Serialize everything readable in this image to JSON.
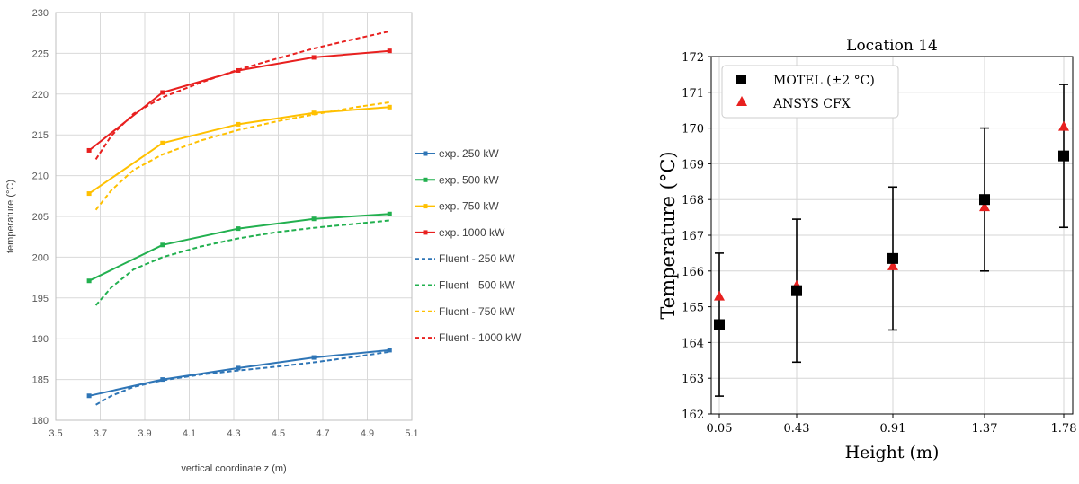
{
  "chart_data": [
    {
      "type": "line",
      "title": "",
      "xlabel": "vertical coordinate z (m)",
      "ylabel": "temperature (°C)",
      "xlim": [
        3.5,
        5.1
      ],
      "ylim": [
        180,
        230
      ],
      "x_ticks": [
        "3.5",
        "3.7",
        "3.9",
        "4.1",
        "4.3",
        "4.5",
        "4.7",
        "4.9",
        "5.1"
      ],
      "y_ticks": [
        "180",
        "185",
        "190",
        "195",
        "200",
        "205",
        "210",
        "215",
        "220",
        "225",
        "230"
      ],
      "grid": true,
      "legend_position": "right",
      "series": [
        {
          "name": "exp. 250 kW",
          "color": "#2e75b6",
          "style": "solid-marker",
          "x": [
            3.65,
            3.98,
            4.32,
            4.66,
            5.0
          ],
          "y": [
            183.0,
            185.0,
            186.4,
            187.7,
            188.6
          ]
        },
        {
          "name": "exp. 500 kW",
          "color": "#22b04f",
          "style": "solid-marker",
          "x": [
            3.65,
            3.98,
            4.32,
            4.66,
            5.0
          ],
          "y": [
            197.1,
            201.5,
            203.5,
            204.7,
            205.3
          ]
        },
        {
          "name": "exp. 750 kW",
          "color": "#ffc000",
          "style": "solid-marker",
          "x": [
            3.65,
            3.98,
            4.32,
            4.66,
            5.0
          ],
          "y": [
            207.8,
            214.0,
            216.3,
            217.7,
            218.4
          ]
        },
        {
          "name": "exp. 1000 kW",
          "color": "#e8201f",
          "style": "solid-marker",
          "x": [
            3.65,
            3.98,
            4.32,
            4.66,
            5.0
          ],
          "y": [
            213.1,
            220.2,
            222.9,
            224.5,
            225.3
          ]
        },
        {
          "name": "Fluent - 250 kW",
          "color": "#2e75b6",
          "style": "dashed",
          "x": [
            3.68,
            3.75,
            3.85,
            3.98,
            4.15,
            4.32,
            4.5,
            4.66,
            4.85,
            5.0
          ],
          "y": [
            181.9,
            183.0,
            184.1,
            184.9,
            185.6,
            186.1,
            186.6,
            187.1,
            187.8,
            188.4
          ]
        },
        {
          "name": "Fluent - 500 kW",
          "color": "#22b04f",
          "style": "dashed",
          "x": [
            3.68,
            3.75,
            3.85,
            3.98,
            4.15,
            4.32,
            4.5,
            4.66,
            4.85,
            5.0
          ],
          "y": [
            194.1,
            196.3,
            198.5,
            200.0,
            201.3,
            202.3,
            203.1,
            203.6,
            204.1,
            204.5
          ]
        },
        {
          "name": "Fluent - 750 kW",
          "color": "#ffc000",
          "style": "dashed",
          "x": [
            3.68,
            3.75,
            3.85,
            3.98,
            4.15,
            4.32,
            4.5,
            4.66,
            4.85,
            5.0
          ],
          "y": [
            205.8,
            208.2,
            210.7,
            212.6,
            214.3,
            215.6,
            216.7,
            217.5,
            218.4,
            219.0
          ]
        },
        {
          "name": "Fluent - 1000 kW",
          "color": "#e8201f",
          "style": "dashed",
          "x": [
            3.68,
            3.75,
            3.85,
            3.98,
            4.15,
            4.32,
            4.5,
            4.66,
            4.85,
            5.0
          ],
          "y": [
            212.0,
            214.9,
            217.6,
            219.6,
            221.4,
            223.0,
            224.4,
            225.6,
            226.8,
            227.7
          ]
        }
      ]
    },
    {
      "type": "scatter",
      "title": "Location 14",
      "xlabel": "Height (m)",
      "ylabel": "Temperature (°C)",
      "categories": [
        "0.05",
        "0.43",
        "0.91",
        "1.37",
        "1.78"
      ],
      "y_ticks": [
        "162",
        "163",
        "164",
        "165",
        "166",
        "167",
        "168",
        "169",
        "170",
        "171",
        "172"
      ],
      "ylim": [
        162,
        172
      ],
      "grid": true,
      "legend_position": "top-left",
      "series": [
        {
          "name": "MOTEL (±2 °C)",
          "marker": "square",
          "color": "#000000",
          "values": [
            164.5,
            165.45,
            166.35,
            168.0,
            169.22
          ],
          "error": 2.0
        },
        {
          "name": "ANSYS CFX",
          "marker": "triangle",
          "color": "#e8201f",
          "values": [
            165.3,
            165.6,
            166.15,
            167.8,
            170.05
          ]
        }
      ]
    }
  ]
}
